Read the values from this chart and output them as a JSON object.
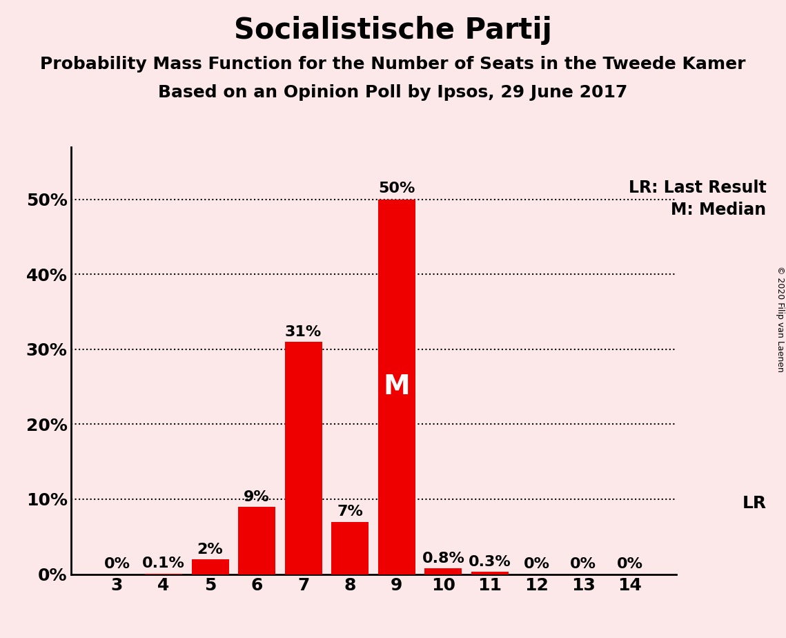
{
  "title": "Socialistische Partij",
  "subtitle1": "Probability Mass Function for the Number of Seats in the Tweede Kamer",
  "subtitle2": "Based on an Opinion Poll by Ipsos, 29 June 2017",
  "copyright": "© 2020 Filip van Laenen",
  "categories": [
    3,
    4,
    5,
    6,
    7,
    8,
    9,
    10,
    11,
    12,
    13,
    14
  ],
  "values": [
    0.0,
    0.1,
    2.0,
    9.0,
    31.0,
    7.0,
    50.0,
    0.8,
    0.3,
    0.0,
    0.0,
    0.0
  ],
  "labels": [
    "0%",
    "0.1%",
    "2%",
    "9%",
    "31%",
    "7%",
    "50%",
    "0.8%",
    "0.3%",
    "0%",
    "0%",
    "0%"
  ],
  "bar_color": "#ee0000",
  "background_color": "#fce8e8",
  "text_color": "#000000",
  "bar_label_color_default": "#000000",
  "bar_label_color_inside": "#ffffff",
  "median_bar_index": 6,
  "median_label": "M",
  "lr_label": "LR",
  "legend_lr": "LR: Last Result",
  "legend_m": "M: Median",
  "yticks": [
    0,
    10,
    20,
    30,
    40,
    50
  ],
  "ylim": [
    0,
    57
  ],
  "dotted_lines_y": [
    10,
    20,
    30,
    40,
    50
  ],
  "title_fontsize": 30,
  "subtitle_fontsize": 18,
  "axis_fontsize": 18,
  "bar_label_fontsize": 16,
  "legend_fontsize": 17,
  "copyright_fontsize": 9
}
